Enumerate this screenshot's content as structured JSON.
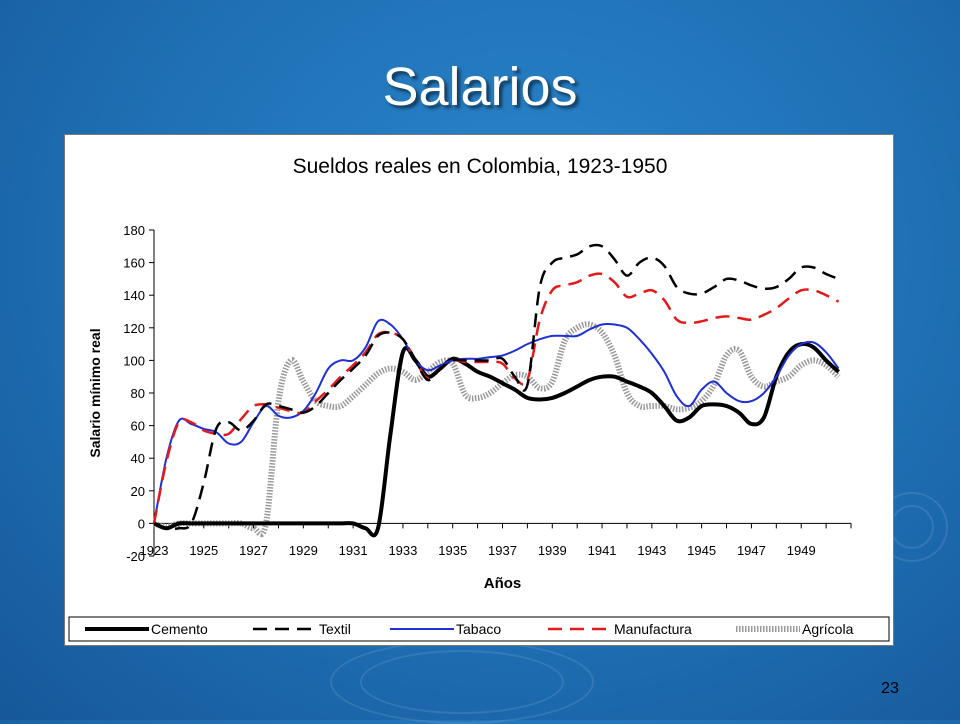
{
  "slide": {
    "title": "Salarios",
    "page_number": "23"
  },
  "chart_data": {
    "type": "line",
    "title": "Sueldos reales en Colombia, 1923-1950",
    "xlabel": "Años",
    "ylabel": "Salario mínimo real",
    "ylim": [
      -20,
      180
    ],
    "xlim": [
      1923,
      1951
    ],
    "y_ticks": [
      "180",
      "160",
      "140",
      "120",
      "100",
      "80",
      "60",
      "40",
      "20",
      "0",
      "-20"
    ],
    "x_ticks": [
      "1923",
      "1925",
      "1927",
      "1929",
      "1931",
      "1933",
      "1935",
      "1937",
      "1939",
      "1941",
      "1943",
      "1945",
      "1947",
      "1949"
    ],
    "legend_position": "bottom",
    "x": [
      1923.0,
      1923.5,
      1924.0,
      1924.5,
      1925.0,
      1925.5,
      1926.0,
      1926.5,
      1927.0,
      1927.5,
      1928.0,
      1928.5,
      1929.0,
      1929.5,
      1930.0,
      1930.5,
      1931.0,
      1931.5,
      1932.0,
      1932.5,
      1933.0,
      1933.5,
      1934.0,
      1934.5,
      1935.0,
      1935.5,
      1936.0,
      1936.5,
      1937.0,
      1937.5,
      1938.0,
      1938.5,
      1939.0,
      1939.5,
      1940.0,
      1940.5,
      1941.0,
      1941.5,
      1942.0,
      1942.5,
      1943.0,
      1943.5,
      1944.0,
      1944.5,
      1945.0,
      1945.5,
      1946.0,
      1946.5,
      1947.0,
      1947.5,
      1948.0,
      1948.5,
      1949.0,
      1949.5,
      1950.0,
      1950.5
    ],
    "series": [
      {
        "name": "Cemento",
        "color": "#000000",
        "style": "solid-thick",
        "values": [
          0,
          -3,
          0,
          0,
          0,
          0,
          0,
          0,
          0,
          0,
          0,
          0,
          0,
          0,
          0,
          0,
          0,
          -3,
          -3,
          55,
          105,
          100,
          90,
          95,
          101,
          98,
          93,
          90,
          86,
          82,
          77,
          76,
          77,
          80,
          84,
          88,
          90,
          90,
          87,
          84,
          80,
          72,
          63,
          65,
          72,
          73,
          72,
          68,
          61,
          65,
          90,
          105,
          110,
          108,
          100,
          93
        ]
      },
      {
        "name": "Textil",
        "color": "#000000",
        "style": "dashed",
        "values": [
          0,
          -3,
          -3,
          0,
          25,
          58,
          62,
          57,
          63,
          73,
          72,
          70,
          68,
          72,
          80,
          88,
          95,
          103,
          115,
          117,
          113,
          100,
          88,
          95,
          100,
          100,
          100,
          100,
          101,
          90,
          85,
          145,
          160,
          163,
          165,
          170,
          170,
          162,
          152,
          160,
          163,
          158,
          145,
          141,
          141,
          145,
          150,
          149,
          146,
          144,
          145,
          150,
          157,
          157,
          153,
          150
        ]
      },
      {
        "name": "Tabaco",
        "color": "#1f2fd8",
        "style": "solid",
        "values": [
          0,
          40,
          63,
          61,
          58,
          56,
          49,
          50,
          62,
          72,
          66,
          65,
          69,
          80,
          95,
          100,
          100,
          108,
          124,
          122,
          113,
          100,
          94,
          97,
          100,
          101,
          101,
          102,
          103,
          106,
          110,
          113,
          115,
          115,
          115,
          119,
          122,
          122,
          120,
          113,
          104,
          93,
          78,
          72,
          82,
          87,
          80,
          75,
          75,
          80,
          90,
          103,
          110,
          111,
          105,
          95
        ]
      },
      {
        "name": "Manufactura",
        "color": "#e31a1a",
        "style": "dashed",
        "values": [
          0,
          38,
          62,
          62,
          57,
          55,
          55,
          64,
          72,
          73,
          71,
          69,
          68,
          75,
          82,
          90,
          97,
          105,
          116,
          117,
          113,
          100,
          89,
          95,
          100,
          99,
          99,
          99,
          98,
          89,
          88,
          125,
          143,
          146,
          148,
          152,
          153,
          148,
          139,
          141,
          143,
          137,
          125,
          123,
          124,
          126,
          127,
          126,
          125,
          128,
          132,
          138,
          143,
          143,
          140,
          136
        ]
      },
      {
        "name": "Agrícola",
        "color": "#9a9a9a",
        "style": "hatched",
        "values": [
          0,
          -2,
          0,
          0,
          0,
          0,
          0,
          0,
          -3,
          0,
          75,
          100,
          87,
          75,
          72,
          72,
          78,
          85,
          92,
          95,
          93,
          88,
          93,
          99,
          98,
          79,
          77,
          80,
          86,
          91,
          90,
          83,
          87,
          112,
          120,
          122,
          117,
          103,
          80,
          72,
          72,
          72,
          70,
          71,
          75,
          85,
          103,
          106,
          90,
          84,
          87,
          90,
          97,
          100,
          97,
          90
        ]
      }
    ]
  }
}
